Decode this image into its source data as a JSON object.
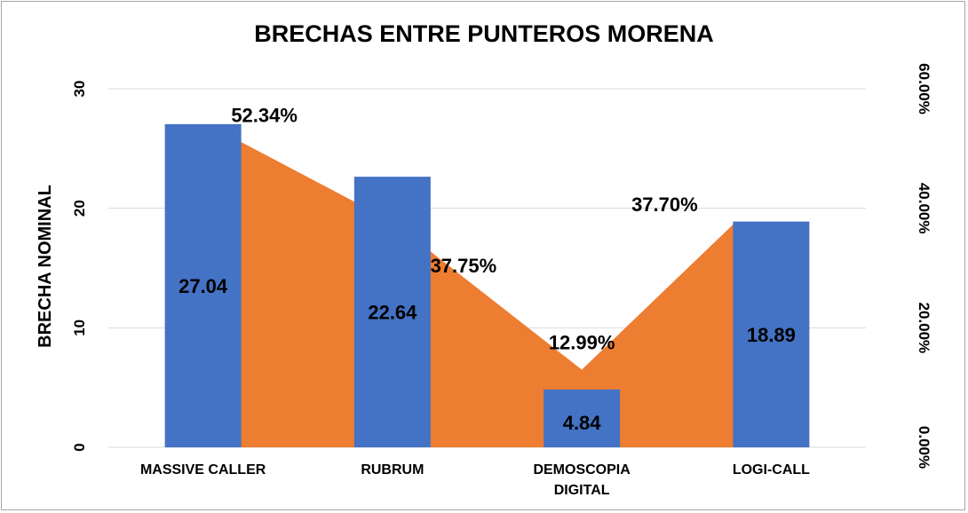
{
  "chart_data": {
    "type": "bar",
    "title": "BRECHAS ENTRE PUNTEROS MORENA",
    "ylabel": "BRECHA NOMINAL",
    "y2label": "",
    "categories": [
      "MASSIVE CALLER",
      "RUBRUM",
      "DEMOSCOPIA DIGITAL",
      "LOGI-CALL"
    ],
    "category_lines": [
      [
        "MASSIVE CALLER"
      ],
      [
        "RUBRUM"
      ],
      [
        "DEMOSCOPIA",
        "DIGITAL"
      ],
      [
        "LOGI-CALL"
      ]
    ],
    "ylim": [
      0,
      30
    ],
    "yticks": [
      "0",
      "10",
      "20",
      "30"
    ],
    "y2lim": [
      0,
      0.6
    ],
    "y2ticks": [
      "0.00%",
      "20.00%",
      "40.00%",
      "60.00%"
    ],
    "grid": true,
    "series": [
      {
        "type": "bar",
        "values": [
          27.04,
          22.64,
          4.84,
          18.89
        ],
        "labels": [
          "27.04",
          "22.64",
          "4.84",
          "18.89"
        ],
        "color": "#4472c4"
      },
      {
        "type": "area",
        "axis": "secondary",
        "values": [
          0.5234,
          0.3775,
          0.1299,
          0.377
        ],
        "labels": [
          "52.34%",
          "37.75%",
          "12.99%",
          "37.70%"
        ],
        "color": "#ed7d31"
      }
    ]
  }
}
